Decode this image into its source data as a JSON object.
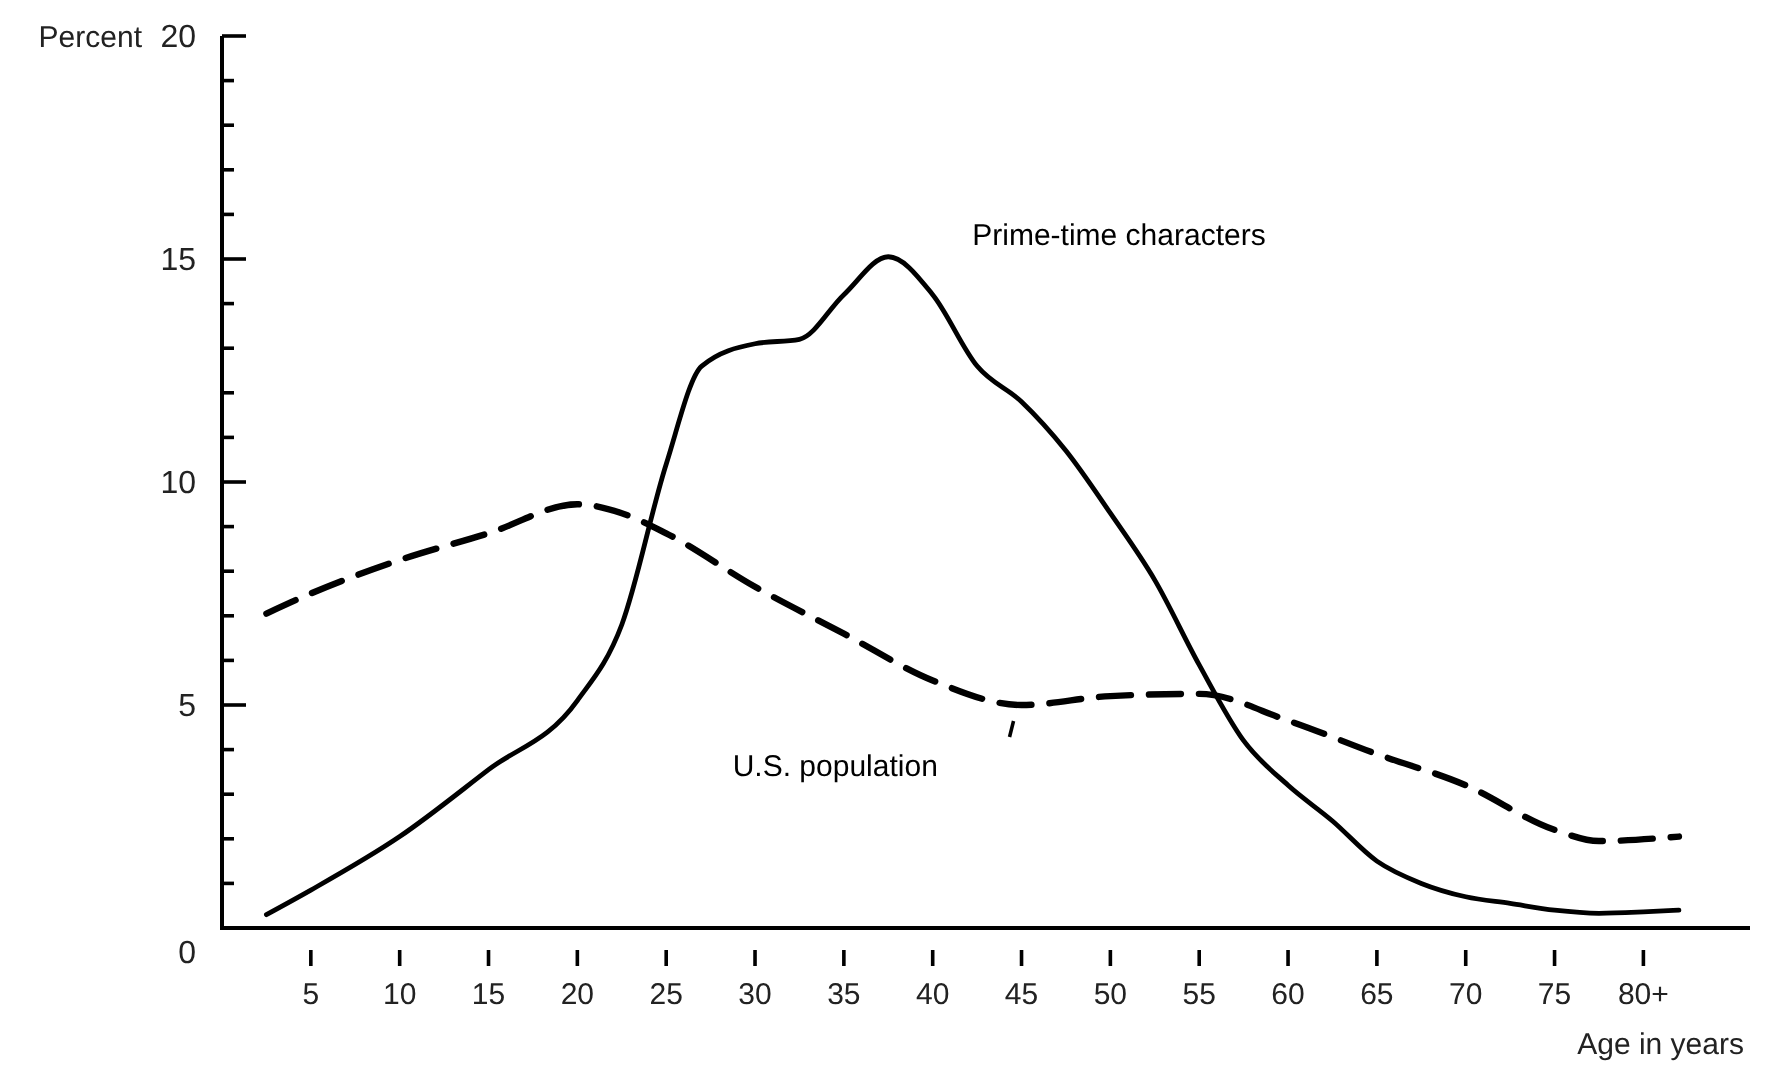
{
  "chart_data": {
    "type": "line",
    "xlabel": "Age in years",
    "ylabel": "Percent",
    "xlim": [
      0,
      86
    ],
    "ylim": [
      0,
      20
    ],
    "xticks": [
      5,
      10,
      15,
      20,
      25,
      30,
      35,
      40,
      45,
      50,
      55,
      60,
      65,
      70,
      75,
      {
        "value": 80,
        "label": "80+"
      }
    ],
    "yticks": [
      0,
      {
        "value": 1,
        "label": null
      },
      {
        "value": 2,
        "label": null
      },
      {
        "value": 3,
        "label": null
      },
      {
        "value": 4,
        "label": null
      },
      5,
      {
        "value": 6,
        "label": null
      },
      {
        "value": 7,
        "label": null
      },
      {
        "value": 8,
        "label": null
      },
      {
        "value": 9,
        "label": null
      },
      10,
      {
        "value": 11,
        "label": null
      },
      {
        "value": 12,
        "label": null
      },
      {
        "value": 13,
        "label": null
      },
      {
        "value": 14,
        "label": null
      },
      15,
      {
        "value": 16,
        "label": null
      },
      {
        "value": 17,
        "label": null
      },
      {
        "value": 18,
        "label": null
      },
      {
        "value": 19,
        "label": null
      },
      20
    ],
    "grid": false,
    "legend": false,
    "marker": "none",
    "series": [
      {
        "name": "Prime-time characters",
        "color": "#000000",
        "line_style": "solid",
        "x": [
          2.5,
          5,
          10,
          15,
          20,
          22.5,
          25,
          27,
          30,
          32.5,
          35,
          37.5,
          40,
          42.5,
          45,
          47.5,
          50,
          52.5,
          55,
          57.5,
          60,
          62.5,
          65,
          67.5,
          70,
          72.5,
          75,
          77.5,
          80,
          82
        ],
        "values": [
          0.3,
          0.85,
          2.05,
          3.55,
          5.1,
          6.8,
          10.4,
          12.6,
          13.1,
          13.2,
          14.2,
          15.05,
          14.2,
          12.6,
          11.8,
          10.7,
          9.3,
          7.8,
          5.9,
          4.2,
          3.2,
          2.4,
          1.5,
          1.0,
          0.7,
          0.55,
          0.4,
          0.33,
          0.36,
          0.4
        ]
      },
      {
        "name": "U.S. population",
        "color": "#000000",
        "line_style": "dashed",
        "x": [
          2.5,
          5,
          10,
          15,
          20,
          22.5,
          25,
          30,
          35,
          40,
          45,
          50,
          55,
          60,
          65,
          70,
          75,
          77.5,
          82
        ],
        "values": [
          7.05,
          7.5,
          8.25,
          8.85,
          9.5,
          9.3,
          8.85,
          7.65,
          6.6,
          5.55,
          5.0,
          5.2,
          5.25,
          4.65,
          3.9,
          3.2,
          2.2,
          1.95,
          2.05
        ]
      }
    ]
  }
}
